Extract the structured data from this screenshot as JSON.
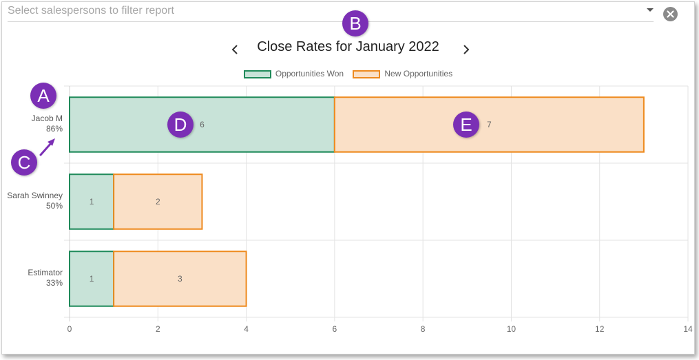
{
  "filter": {
    "placeholder": "Select salespersons to filter report",
    "value": ""
  },
  "icons": {
    "dropdown": "chevron-down-icon",
    "clear": "close-circle-icon",
    "prev": "chevron-left-icon",
    "next": "chevron-right-icon"
  },
  "colors": {
    "won_fill": "#c8e3d8",
    "won_stroke": "#1f8a5a",
    "new_fill": "#fae0c7",
    "new_stroke": "#ee8a1e",
    "badge": "#7b2fb5",
    "grid": "#e3e3e3"
  },
  "callouts": [
    "A",
    "B",
    "C",
    "D",
    "E"
  ],
  "chart_data": {
    "type": "bar",
    "orientation": "horizontal",
    "stacked": true,
    "title": "Close Rates for January 2022",
    "categories": [
      "Jacob M",
      "Sarah Swinney",
      "Estimator"
    ],
    "category_sublabels": [
      "86%",
      "50%",
      "33%"
    ],
    "series": [
      {
        "name": "Opportunities Won",
        "values": [
          6,
          1,
          1
        ]
      },
      {
        "name": "New Opportunities",
        "values": [
          7,
          2,
          3
        ]
      }
    ],
    "data_labels": true,
    "xlim": [
      0,
      14
    ],
    "xticks": [
      0,
      2,
      4,
      6,
      8,
      10,
      12,
      14
    ],
    "grid": true,
    "legend_position": "top"
  }
}
